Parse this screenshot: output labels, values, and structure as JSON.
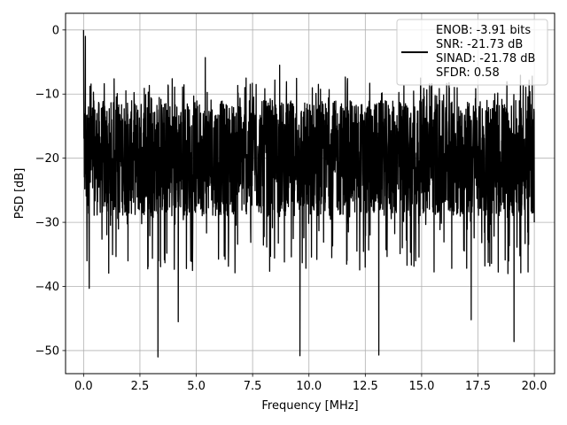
{
  "chart_data": {
    "type": "line",
    "title": "",
    "xlabel": "Frequency [MHz]",
    "ylabel": "PSD [dB]",
    "xlim": [
      -0.8,
      20.9
    ],
    "ylim": [
      -53.6,
      2.6
    ],
    "xticks": [
      0.0,
      2.5,
      5.0,
      7.5,
      10.0,
      12.5,
      15.0,
      17.5,
      20.0
    ],
    "xtick_labels": [
      "0.0",
      "2.5",
      "5.0",
      "7.5",
      "10.0",
      "12.5",
      "15.0",
      "17.5",
      "20.0"
    ],
    "yticks": [
      0,
      -10,
      -20,
      -30,
      -40,
      -50
    ],
    "ytick_labels": [
      "0",
      "−10",
      "−20",
      "−30",
      "−40",
      "−50"
    ],
    "grid": true,
    "legend_placement": "top-right",
    "series": [
      {
        "name": "ENOB: -3.91 bits\nSNR: -21.73 dB\nSINAD: -21.78 dB\nSFDR: 0.58",
        "color": "#000000",
        "description": "dense noise-like PSD trace over 0-20 MHz",
        "x_range": [
          0.0,
          20.0
        ],
        "typical_band": [
          -29,
          -11
        ],
        "peak": {
          "x": 0.0,
          "y": 0.0
        },
        "notable_points": [
          {
            "x": 0.05,
            "y": -20.5
          },
          {
            "x": 0.08,
            "y": -1.0
          },
          {
            "x": 0.15,
            "y": -36.0
          },
          {
            "x": 0.25,
            "y": -40.3
          },
          {
            "x": 3.3,
            "y": -51.0
          },
          {
            "x": 4.2,
            "y": -45.5
          },
          {
            "x": 5.4,
            "y": -4.3
          },
          {
            "x": 8.7,
            "y": -5.5
          },
          {
            "x": 9.6,
            "y": -50.8
          },
          {
            "x": 13.1,
            "y": -50.7
          },
          {
            "x": 17.2,
            "y": -45.2
          },
          {
            "x": 19.1,
            "y": -48.6
          },
          {
            "x": 20.0,
            "y": -30.0
          }
        ]
      }
    ],
    "legend_lines": [
      "ENOB: -3.91 bits",
      "SNR: -21.73 dB",
      "SINAD: -21.78 dB",
      "SFDR: 0.58"
    ]
  }
}
